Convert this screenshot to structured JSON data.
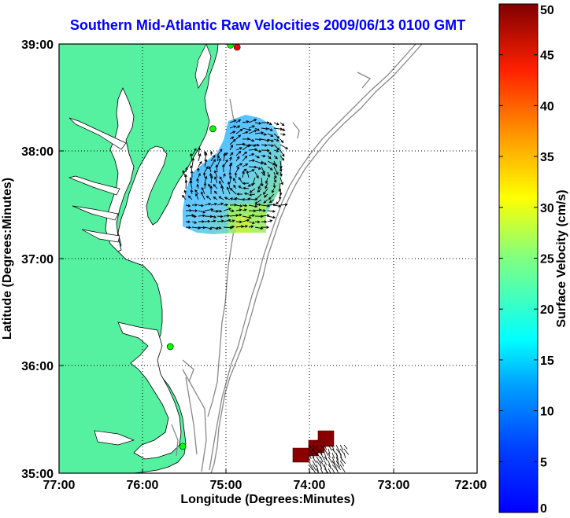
{
  "title": "Southern Mid-Atlantic Raw Velocities 2009/06/13 0100 GMT",
  "x_axis": {
    "label": "Longitude (Degrees:Minutes)",
    "ticks": [
      "77:00",
      "76:00",
      "75:00",
      "74:00",
      "73:00",
      "72:00"
    ]
  },
  "y_axis": {
    "label": "Latitude (Degrees:Minutes)",
    "ticks": [
      "35:00",
      "36:00",
      "37:00",
      "38:00",
      "39:00"
    ]
  },
  "colorbar": {
    "label": "Surface Velocity (cm/s)",
    "ticks": [
      "0",
      "5",
      "10",
      "15",
      "20",
      "25",
      "30",
      "35",
      "40",
      "45",
      "50"
    ],
    "min": 0,
    "max": 50,
    "colormap": "jet"
  },
  "map": {
    "lon_range": [
      -77,
      -72
    ],
    "lat_range": [
      35,
      39
    ],
    "land_color": "#55f0a0",
    "bathymetry_color": "#888888",
    "grid": true,
    "grid_style": "dotted"
  },
  "stations": [
    {
      "lon": -74.87,
      "lat": 38.97,
      "color": "#ff0000"
    },
    {
      "lon": -74.95,
      "lat": 38.99,
      "color": "#00ff00"
    },
    {
      "lon": -75.16,
      "lat": 38.21,
      "color": "#00ff00"
    },
    {
      "lon": -75.67,
      "lat": 36.18,
      "color": "#00ff00"
    },
    {
      "lon": -75.52,
      "lat": 35.25,
      "color": "#00ff00"
    }
  ]
}
